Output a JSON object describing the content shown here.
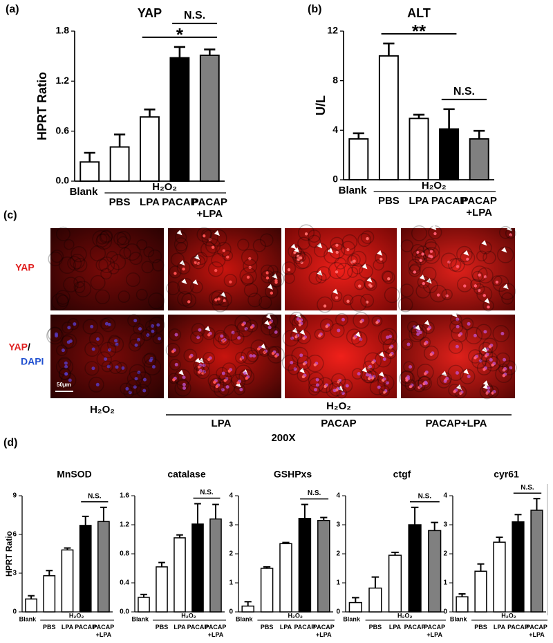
{
  "panels": [
    "(a)",
    "(b)",
    "(c)",
    "(d)"
  ],
  "chart_data": [
    {
      "type": "bar",
      "title": "YAP",
      "ylabel": "HPRT Ratio",
      "categories": [
        "Blank",
        "PBS",
        "LPA",
        "PACAP",
        "PACAP\n+LPA"
      ],
      "group_label": "H₂O₂",
      "values": [
        0.23,
        0.41,
        0.77,
        1.48,
        1.51
      ],
      "errors": [
        0.11,
        0.15,
        0.09,
        0.13,
        0.07
      ],
      "colors": [
        "#ffffff",
        "#ffffff",
        "#ffffff",
        "#000000",
        "#808080"
      ],
      "ylim": [
        0,
        1.8
      ],
      "yticks": [
        {
          "value": 0,
          "label": "0.0"
        },
        0.6,
        1.2,
        1.8
      ],
      "annotations": [
        {
          "text": "*",
          "from": 2,
          "to": 4
        },
        {
          "text": "N.S.",
          "from": 3,
          "to": 4
        }
      ]
    },
    {
      "type": "bar",
      "title": "ALT",
      "ylabel": "U/L",
      "categories": [
        "Blank",
        "PBS",
        "LPA",
        "PACAP",
        "PACAP\n+LPA"
      ],
      "group_label": "H₂O₂",
      "values": [
        3.3,
        10,
        4.95,
        4.1,
        3.3
      ],
      "errors": [
        0.45,
        1,
        0.3,
        1.6,
        0.65
      ],
      "colors": [
        "#ffffff",
        "#ffffff",
        "#ffffff",
        "#000000",
        "#808080"
      ],
      "ylim": [
        0,
        12
      ],
      "yticks": [
        0,
        4,
        8,
        12
      ],
      "annotations": [
        {
          "text": "**",
          "from": 1,
          "to": 3
        },
        {
          "text": "N.S.",
          "from": 3,
          "to": 4
        }
      ]
    },
    {
      "type": "bar",
      "title": "MnSOD",
      "ylabel": "HPRT Ratio",
      "categories": [
        "Blank",
        "PBS",
        "LPA",
        "PACAP",
        "PACAP\n+LPA"
      ],
      "group_label": "H₂O₂",
      "values": [
        1,
        2.8,
        4.8,
        6.7,
        7
      ],
      "errors": [
        0.25,
        0.4,
        0.15,
        0.7,
        1.1
      ],
      "colors": [
        "#ffffff",
        "#ffffff",
        "#ffffff",
        "#000000",
        "#808080"
      ],
      "ylim": [
        0,
        9
      ],
      "yticks": [
        0,
        3,
        6,
        9
      ],
      "annotations": [
        {
          "text": "N.S.",
          "from": 3,
          "to": 4
        }
      ]
    },
    {
      "type": "bar",
      "title": "catalase",
      "categories": [
        "Blank",
        "PBS",
        "LPA",
        "PACAP",
        "PACAP\n+LPA"
      ],
      "group_label": "H₂O₂",
      "values": [
        0.2,
        0.62,
        1.02,
        1.21,
        1.28
      ],
      "errors": [
        0.04,
        0.06,
        0.04,
        0.28,
        0.2
      ],
      "colors": [
        "#ffffff",
        "#ffffff",
        "#ffffff",
        "#000000",
        "#808080"
      ],
      "ylim": [
        0,
        1.6
      ],
      "yticks": [
        {
          "value": 0,
          "label": "0.0"
        },
        0.4,
        0.8,
        1.2,
        1.6
      ],
      "annotations": [
        {
          "text": "N.S.",
          "from": 3,
          "to": 4
        }
      ]
    },
    {
      "type": "bar",
      "title": "GSHPxs",
      "categories": [
        "Blank",
        "PBS",
        "LPA",
        "PACAP",
        "PACAP\n+LPA"
      ],
      "group_label": "H₂O₂",
      "values": [
        0.2,
        1.5,
        2.35,
        3.22,
        3.15
      ],
      "errors": [
        0.15,
        0.05,
        0.04,
        0.48,
        0.1
      ],
      "colors": [
        "#ffffff",
        "#ffffff",
        "#ffffff",
        "#000000",
        "#808080"
      ],
      "ylim": [
        0,
        4
      ],
      "yticks": [
        0,
        1,
        2,
        3,
        4
      ],
      "annotations": [
        {
          "text": "N.S.",
          "from": 3,
          "to": 4
        }
      ]
    },
    {
      "type": "bar",
      "title": "ctgf",
      "categories": [
        "Blank",
        "PBS",
        "LPA",
        "PACAP",
        "PACAP\n+LPA"
      ],
      "group_label": "H₂O₂",
      "values": [
        0.32,
        0.82,
        1.95,
        3,
        2.8
      ],
      "errors": [
        0.17,
        0.38,
        0.1,
        0.6,
        0.28
      ],
      "colors": [
        "#ffffff",
        "#ffffff",
        "#ffffff",
        "#000000",
        "#808080"
      ],
      "ylim": [
        0,
        4
      ],
      "yticks": [
        0,
        1,
        2,
        3,
        4
      ],
      "annotations": [
        {
          "text": "N.S.",
          "from": 3,
          "to": 4
        }
      ]
    },
    {
      "type": "bar",
      "title": "cyr61",
      "categories": [
        "Blank",
        "PBS",
        "LPA",
        "PACAP",
        "PACAP\n+LPA"
      ],
      "group_label": "H₂O₂",
      "values": [
        0.52,
        1.4,
        2.4,
        3.1,
        3.5
      ],
      "errors": [
        0.1,
        0.25,
        0.17,
        0.25,
        0.4
      ],
      "colors": [
        "#ffffff",
        "#ffffff",
        "#ffffff",
        "#000000",
        "#808080"
      ],
      "ylim": [
        0,
        4
      ],
      "yticks": [
        0,
        1,
        2,
        3,
        4
      ],
      "annotations": [
        {
          "text": "N.S.",
          "from": 3,
          "to": 4
        }
      ]
    }
  ],
  "panel_c": {
    "row1": "YAP",
    "row2": [
      "YAP",
      "/",
      "DAPI"
    ],
    "scale_bar": "50μm",
    "control": "H₂O₂",
    "group": "H₂O₂",
    "columns": [
      "LPA",
      "PACAP",
      "PACAP+LPA"
    ],
    "magnification": "200X"
  }
}
